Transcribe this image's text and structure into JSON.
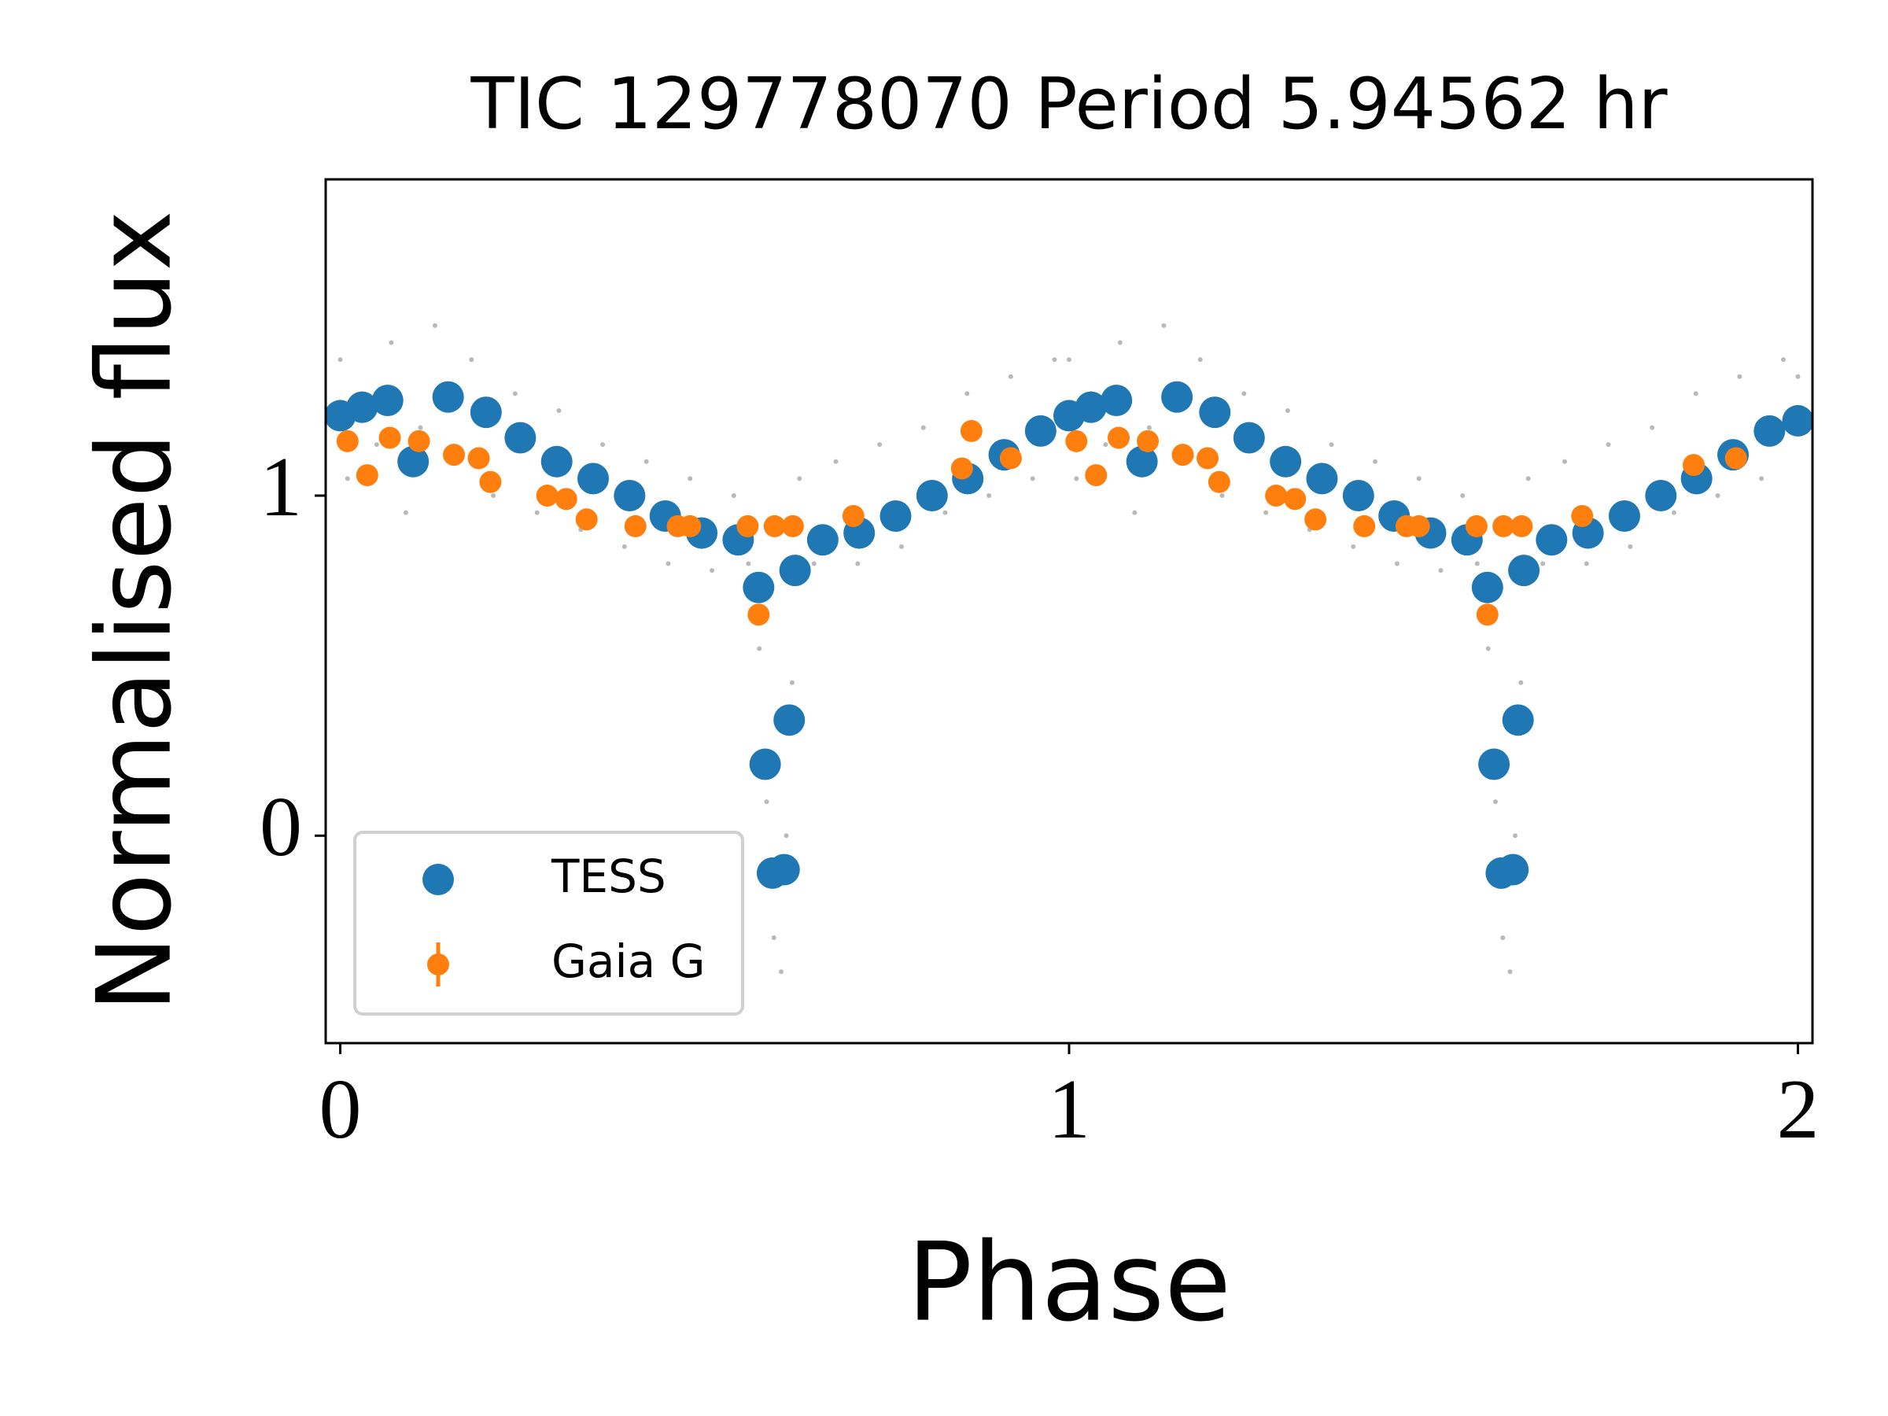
{
  "chart_data": {
    "type": "scatter",
    "title": "TIC 129778070 Period 5.94562 hr",
    "x_label": "Phase",
    "y_label": "Normalised flux",
    "xlim": [
      -0.02,
      2.02
    ],
    "ylim": [
      -0.61,
      1.93
    ],
    "xticks": [
      0,
      1,
      2
    ],
    "yticks": [
      0,
      1
    ],
    "legend": "lower left",
    "series": [
      {
        "color": "#808080",
        "x": [
          0.0,
          0.01,
          0.03,
          0.05,
          0.07,
          0.09,
          0.11,
          0.13,
          0.15,
          0.18,
          0.21,
          0.24,
          0.27,
          0.3,
          0.33,
          0.36,
          0.39,
          0.42,
          0.45,
          0.48,
          0.51,
          0.54,
          0.56,
          0.575,
          0.585,
          0.595,
          0.605,
          0.612,
          0.62,
          0.63,
          0.65,
          0.68,
          0.71,
          0.74,
          0.77,
          0.8,
          0.83,
          0.86,
          0.89,
          0.92,
          0.95,
          0.98,
          1.0,
          1.01,
          1.03,
          1.05,
          1.07,
          1.09,
          1.11,
          1.13,
          1.15,
          1.18,
          1.21,
          1.24,
          1.27,
          1.3,
          1.33,
          1.36,
          1.39,
          1.42,
          1.45,
          1.48,
          1.51,
          1.54,
          1.56,
          1.575,
          1.585,
          1.595,
          1.605,
          1.612,
          1.62,
          1.63,
          1.65,
          1.68,
          1.71,
          1.74,
          1.77,
          1.8,
          1.83,
          1.86,
          1.89,
          1.92,
          1.95,
          1.98,
          2.0
        ],
        "values": [
          1.4,
          1.05,
          1.3,
          1.15,
          1.45,
          0.95,
          1.2,
          1.5,
          1.1,
          1.4,
          1.0,
          1.3,
          0.95,
          1.25,
          0.9,
          1.15,
          0.85,
          1.1,
          0.8,
          1.05,
          0.78,
          1.0,
          0.8,
          0.55,
          0.1,
          -0.3,
          -0.4,
          0.0,
          0.45,
          1.05,
          0.8,
          1.1,
          0.8,
          1.15,
          0.85,
          1.2,
          0.95,
          1.3,
          1.0,
          1.35,
          1.05,
          1.4,
          1.4,
          1.05,
          1.3,
          1.15,
          1.45,
          0.95,
          1.2,
          1.5,
          1.1,
          1.4,
          1.0,
          1.3,
          0.95,
          1.25,
          0.9,
          1.15,
          0.85,
          1.1,
          0.8,
          1.05,
          0.78,
          1.0,
          0.8,
          0.55,
          0.1,
          -0.3,
          -0.4,
          0.0,
          0.45,
          1.05,
          0.8,
          1.1,
          0.8,
          1.15,
          0.85,
          1.2,
          0.95,
          1.3,
          1.0,
          1.35,
          1.05,
          1.4,
          1.35
        ]
      },
      {
        "name": "TESS",
        "color": "#1f77b4",
        "x": [
          0.0,
          0.03,
          0.065,
          0.1,
          0.148,
          0.2,
          0.247,
          0.297,
          0.347,
          0.397,
          0.446,
          0.496,
          0.546,
          0.574,
          0.583,
          0.593,
          0.609,
          0.616,
          0.624,
          0.662,
          0.712,
          0.762,
          0.812,
          0.861,
          0.911,
          0.961,
          1.0,
          1.03,
          1.065,
          1.1,
          1.148,
          1.2,
          1.247,
          1.297,
          1.347,
          1.397,
          1.446,
          1.496,
          1.546,
          1.574,
          1.583,
          1.593,
          1.609,
          1.616,
          1.624,
          1.662,
          1.712,
          1.762,
          1.812,
          1.861,
          1.911,
          1.961,
          2.0
        ],
        "values": [
          1.235,
          1.26,
          1.28,
          1.1,
          1.29,
          1.245,
          1.17,
          1.1,
          1.05,
          1.0,
          0.94,
          0.89,
          0.87,
          0.73,
          0.21,
          -0.11,
          -0.1,
          0.34,
          0.78,
          0.87,
          0.89,
          0.94,
          1.0,
          1.05,
          1.12,
          1.19,
          1.235,
          1.26,
          1.28,
          1.1,
          1.29,
          1.245,
          1.17,
          1.1,
          1.05,
          1.0,
          0.94,
          0.89,
          0.87,
          0.73,
          0.21,
          -0.11,
          -0.1,
          0.34,
          0.78,
          0.87,
          0.89,
          0.94,
          1.0,
          1.05,
          1.12,
          1.19,
          1.22
        ]
      },
      {
        "name": "Gaia G",
        "color": "#ff7f0e",
        "errorbar": true,
        "x": [
          0.01,
          0.037,
          0.068,
          0.108,
          0.156,
          0.19,
          0.206,
          0.284,
          0.31,
          0.338,
          0.405,
          0.463,
          0.48,
          0.559,
          0.574,
          0.596,
          0.621,
          0.704,
          0.853,
          0.866,
          0.92,
          1.01,
          1.037,
          1.068,
          1.108,
          1.156,
          1.19,
          1.206,
          1.284,
          1.31,
          1.338,
          1.405,
          1.463,
          1.48,
          1.559,
          1.574,
          1.596,
          1.621,
          1.704,
          1.857,
          1.915
        ],
        "values": [
          1.16,
          1.06,
          1.17,
          1.16,
          1.12,
          1.11,
          1.04,
          1.0,
          0.99,
          0.93,
          0.91,
          0.91,
          0.91,
          0.91,
          0.65,
          0.91,
          0.91,
          0.94,
          1.08,
          1.19,
          1.11,
          1.16,
          1.06,
          1.17,
          1.16,
          1.12,
          1.11,
          1.04,
          1.0,
          0.99,
          0.93,
          0.91,
          0.91,
          0.91,
          0.91,
          0.65,
          0.91,
          0.91,
          0.94,
          1.09,
          1.11
        ]
      }
    ]
  }
}
